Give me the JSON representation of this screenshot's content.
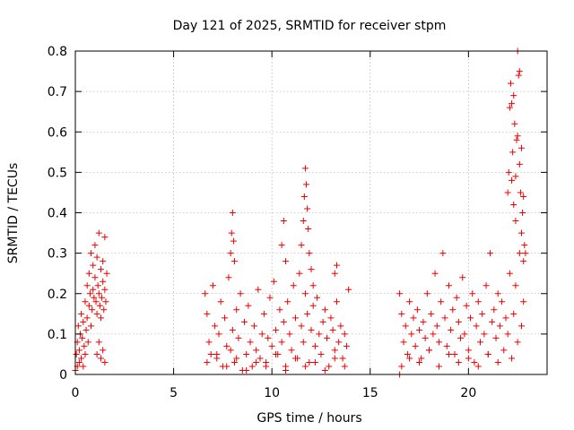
{
  "chart_data": {
    "type": "scatter",
    "title": "Day 121 of 2025, SRMTID for receiver stpm",
    "xlabel": "GPS time / hours",
    "ylabel": "SRMTID / TECUs",
    "xlim": [
      0,
      24
    ],
    "ylim": [
      0,
      0.8
    ],
    "grid": true,
    "marker": "+",
    "color": "#ee0000",
    "xticks": [
      0,
      5,
      10,
      15,
      20
    ],
    "xtick_labels": [
      "0",
      "5",
      "10",
      "15",
      "20"
    ],
    "yticks": [
      0,
      0.1,
      0.2,
      0.3,
      0.4,
      0.5,
      0.6,
      0.7,
      0.8
    ],
    "ytick_labels": [
      "0",
      "0.1",
      "0.2",
      "0.3",
      "0.4",
      "0.5",
      "0.6",
      "0.7",
      "0.8"
    ],
    "series": [
      {
        "name": "SRMTID",
        "x": [
          0.0,
          0.05,
          0.1,
          0.1,
          0.15,
          0.2,
          0.2,
          0.25,
          0.3,
          0.3,
          0.35,
          0.4,
          0.4,
          0.45,
          0.5,
          0.5,
          0.55,
          0.6,
          0.6,
          0.65,
          0.7,
          0.7,
          0.75,
          0.8,
          0.8,
          0.85,
          0.9,
          0.9,
          0.95,
          1.0,
          1.0,
          1.05,
          1.1,
          1.1,
          1.15,
          1.2,
          1.2,
          1.25,
          1.3,
          1.3,
          1.35,
          1.4,
          1.4,
          1.45,
          1.5,
          1.5,
          1.55,
          1.1,
          1.2,
          1.3,
          1.4,
          1.5,
          1.6,
          6.6,
          6.7,
          6.8,
          6.9,
          7.0,
          7.1,
          7.2,
          7.3,
          7.4,
          7.5,
          7.6,
          7.7,
          7.8,
          7.9,
          8.0,
          8.1,
          8.2,
          8.3,
          8.4,
          8.5,
          8.6,
          8.7,
          8.8,
          8.9,
          9.0,
          9.1,
          9.2,
          9.3,
          9.4,
          9.5,
          9.6,
          9.7,
          9.8,
          9.9,
          10.0,
          10.1,
          10.2,
          10.3,
          10.4,
          10.5,
          10.6,
          10.7,
          10.8,
          10.9,
          11.0,
          11.1,
          11.2,
          11.3,
          11.4,
          11.5,
          11.6,
          11.7,
          11.8,
          11.9,
          12.0,
          12.1,
          12.2,
          12.3,
          12.4,
          12.5,
          12.6,
          12.7,
          12.8,
          12.9,
          13.0,
          13.1,
          13.2,
          13.3,
          13.4,
          13.5,
          13.6,
          13.7,
          13.8,
          13.9,
          7.9,
          7.95,
          8.0,
          8.05,
          8.1,
          11.5,
          11.6,
          11.65,
          11.7,
          11.75,
          11.8,
          11.85,
          11.9,
          10.5,
          10.6,
          10.7,
          12.0,
          12.1,
          13.2,
          13.3,
          16.5,
          16.6,
          16.7,
          16.8,
          16.9,
          17.0,
          17.1,
          17.2,
          17.3,
          17.4,
          17.5,
          17.6,
          17.7,
          17.8,
          17.9,
          18.0,
          18.1,
          18.2,
          18.3,
          18.4,
          18.5,
          18.6,
          18.7,
          18.8,
          18.9,
          19.0,
          19.1,
          19.2,
          19.3,
          19.4,
          19.5,
          19.6,
          19.7,
          19.8,
          19.9,
          20.0,
          20.1,
          20.2,
          20.3,
          20.4,
          20.5,
          20.6,
          20.7,
          20.8,
          20.9,
          21.0,
          21.1,
          21.2,
          21.3,
          21.4,
          21.5,
          21.6,
          21.7,
          21.8,
          21.9,
          22.0,
          22.1,
          22.2,
          22.3,
          22.4,
          22.5,
          22.6,
          22.7,
          22.8,
          22.0,
          22.05,
          22.1,
          22.15,
          22.2,
          22.25,
          22.3,
          22.35,
          22.4,
          22.45,
          22.5,
          22.55,
          22.6,
          22.65,
          22.7,
          22.75,
          22.8,
          22.85,
          22.9,
          22.2,
          22.3,
          22.4,
          22.5,
          22.6,
          22.7,
          22.8,
          16.5,
          16.6,
          17.0,
          17.5,
          18.0,
          18.5,
          19.0,
          19.5,
          20.0,
          20.5,
          21.0,
          21.5,
          6.7,
          7.2,
          7.7,
          8.2,
          8.7,
          9.2,
          9.7,
          10.2,
          10.7,
          11.2,
          11.7,
          12.2,
          12.7,
          13.2,
          13.7
        ],
        "y": [
          0.01,
          0.05,
          0.08,
          0.02,
          0.12,
          0.06,
          0.03,
          0.1,
          0.15,
          0.04,
          0.09,
          0.13,
          0.02,
          0.07,
          0.18,
          0.05,
          0.11,
          0.22,
          0.14,
          0.08,
          0.25,
          0.17,
          0.2,
          0.3,
          0.12,
          0.16,
          0.27,
          0.21,
          0.19,
          0.32,
          0.24,
          0.18,
          0.29,
          0.15,
          0.22,
          0.35,
          0.2,
          0.17,
          0.26,
          0.14,
          0.19,
          0.23,
          0.28,
          0.16,
          0.21,
          0.34,
          0.18,
          0.05,
          0.08,
          0.04,
          0.06,
          0.03,
          0.25,
          0.2,
          0.15,
          0.08,
          0.05,
          0.22,
          0.12,
          0.04,
          0.1,
          0.18,
          0.02,
          0.14,
          0.07,
          0.24,
          0.06,
          0.11,
          0.03,
          0.16,
          0.09,
          0.2,
          0.01,
          0.13,
          0.05,
          0.17,
          0.08,
          0.02,
          0.12,
          0.06,
          0.21,
          0.04,
          0.1,
          0.15,
          0.03,
          0.09,
          0.19,
          0.07,
          0.23,
          0.11,
          0.05,
          0.16,
          0.08,
          0.13,
          0.02,
          0.18,
          0.1,
          0.06,
          0.22,
          0.14,
          0.04,
          0.25,
          0.12,
          0.08,
          0.2,
          0.15,
          0.03,
          0.11,
          0.17,
          0.07,
          0.19,
          0.1,
          0.05,
          0.13,
          0.16,
          0.09,
          0.02,
          0.14,
          0.11,
          0.06,
          0.18,
          0.08,
          0.12,
          0.04,
          0.1,
          0.07,
          0.21,
          0.3,
          0.35,
          0.4,
          0.33,
          0.28,
          0.32,
          0.38,
          0.44,
          0.51,
          0.47,
          0.41,
          0.36,
          0.3,
          0.32,
          0.38,
          0.28,
          0.26,
          0.22,
          0.25,
          0.27,
          0.2,
          0.15,
          0.08,
          0.12,
          0.05,
          0.18,
          0.1,
          0.14,
          0.07,
          0.16,
          0.11,
          0.04,
          0.13,
          0.09,
          0.2,
          0.06,
          0.15,
          0.1,
          0.25,
          0.12,
          0.08,
          0.18,
          0.3,
          0.14,
          0.07,
          0.22,
          0.11,
          0.16,
          0.05,
          0.19,
          0.13,
          0.09,
          0.24,
          0.1,
          0.17,
          0.06,
          0.14,
          0.2,
          0.03,
          0.12,
          0.18,
          0.08,
          0.15,
          0.1,
          0.22,
          0.05,
          0.3,
          0.13,
          0.16,
          0.09,
          0.2,
          0.12,
          0.18,
          0.06,
          0.14,
          0.1,
          0.25,
          0.04,
          0.15,
          0.22,
          0.08,
          0.3,
          0.12,
          0.18,
          0.45,
          0.5,
          0.66,
          0.72,
          0.48,
          0.55,
          0.42,
          0.62,
          0.38,
          0.58,
          0.8,
          0.74,
          0.52,
          0.45,
          0.35,
          0.4,
          0.28,
          0.32,
          0.3,
          0.67,
          0.69,
          0.49,
          0.59,
          0.75,
          0.56,
          0.44,
          0.0,
          0.02,
          0.04,
          0.03,
          0.06,
          0.02,
          0.05,
          0.03,
          0.04,
          0.02,
          0.05,
          0.03,
          0.03,
          0.05,
          0.02,
          0.04,
          0.01,
          0.03,
          0.02,
          0.05,
          0.01,
          0.04,
          0.02,
          0.03,
          0.01,
          0.04,
          0.02
        ]
      }
    ]
  }
}
